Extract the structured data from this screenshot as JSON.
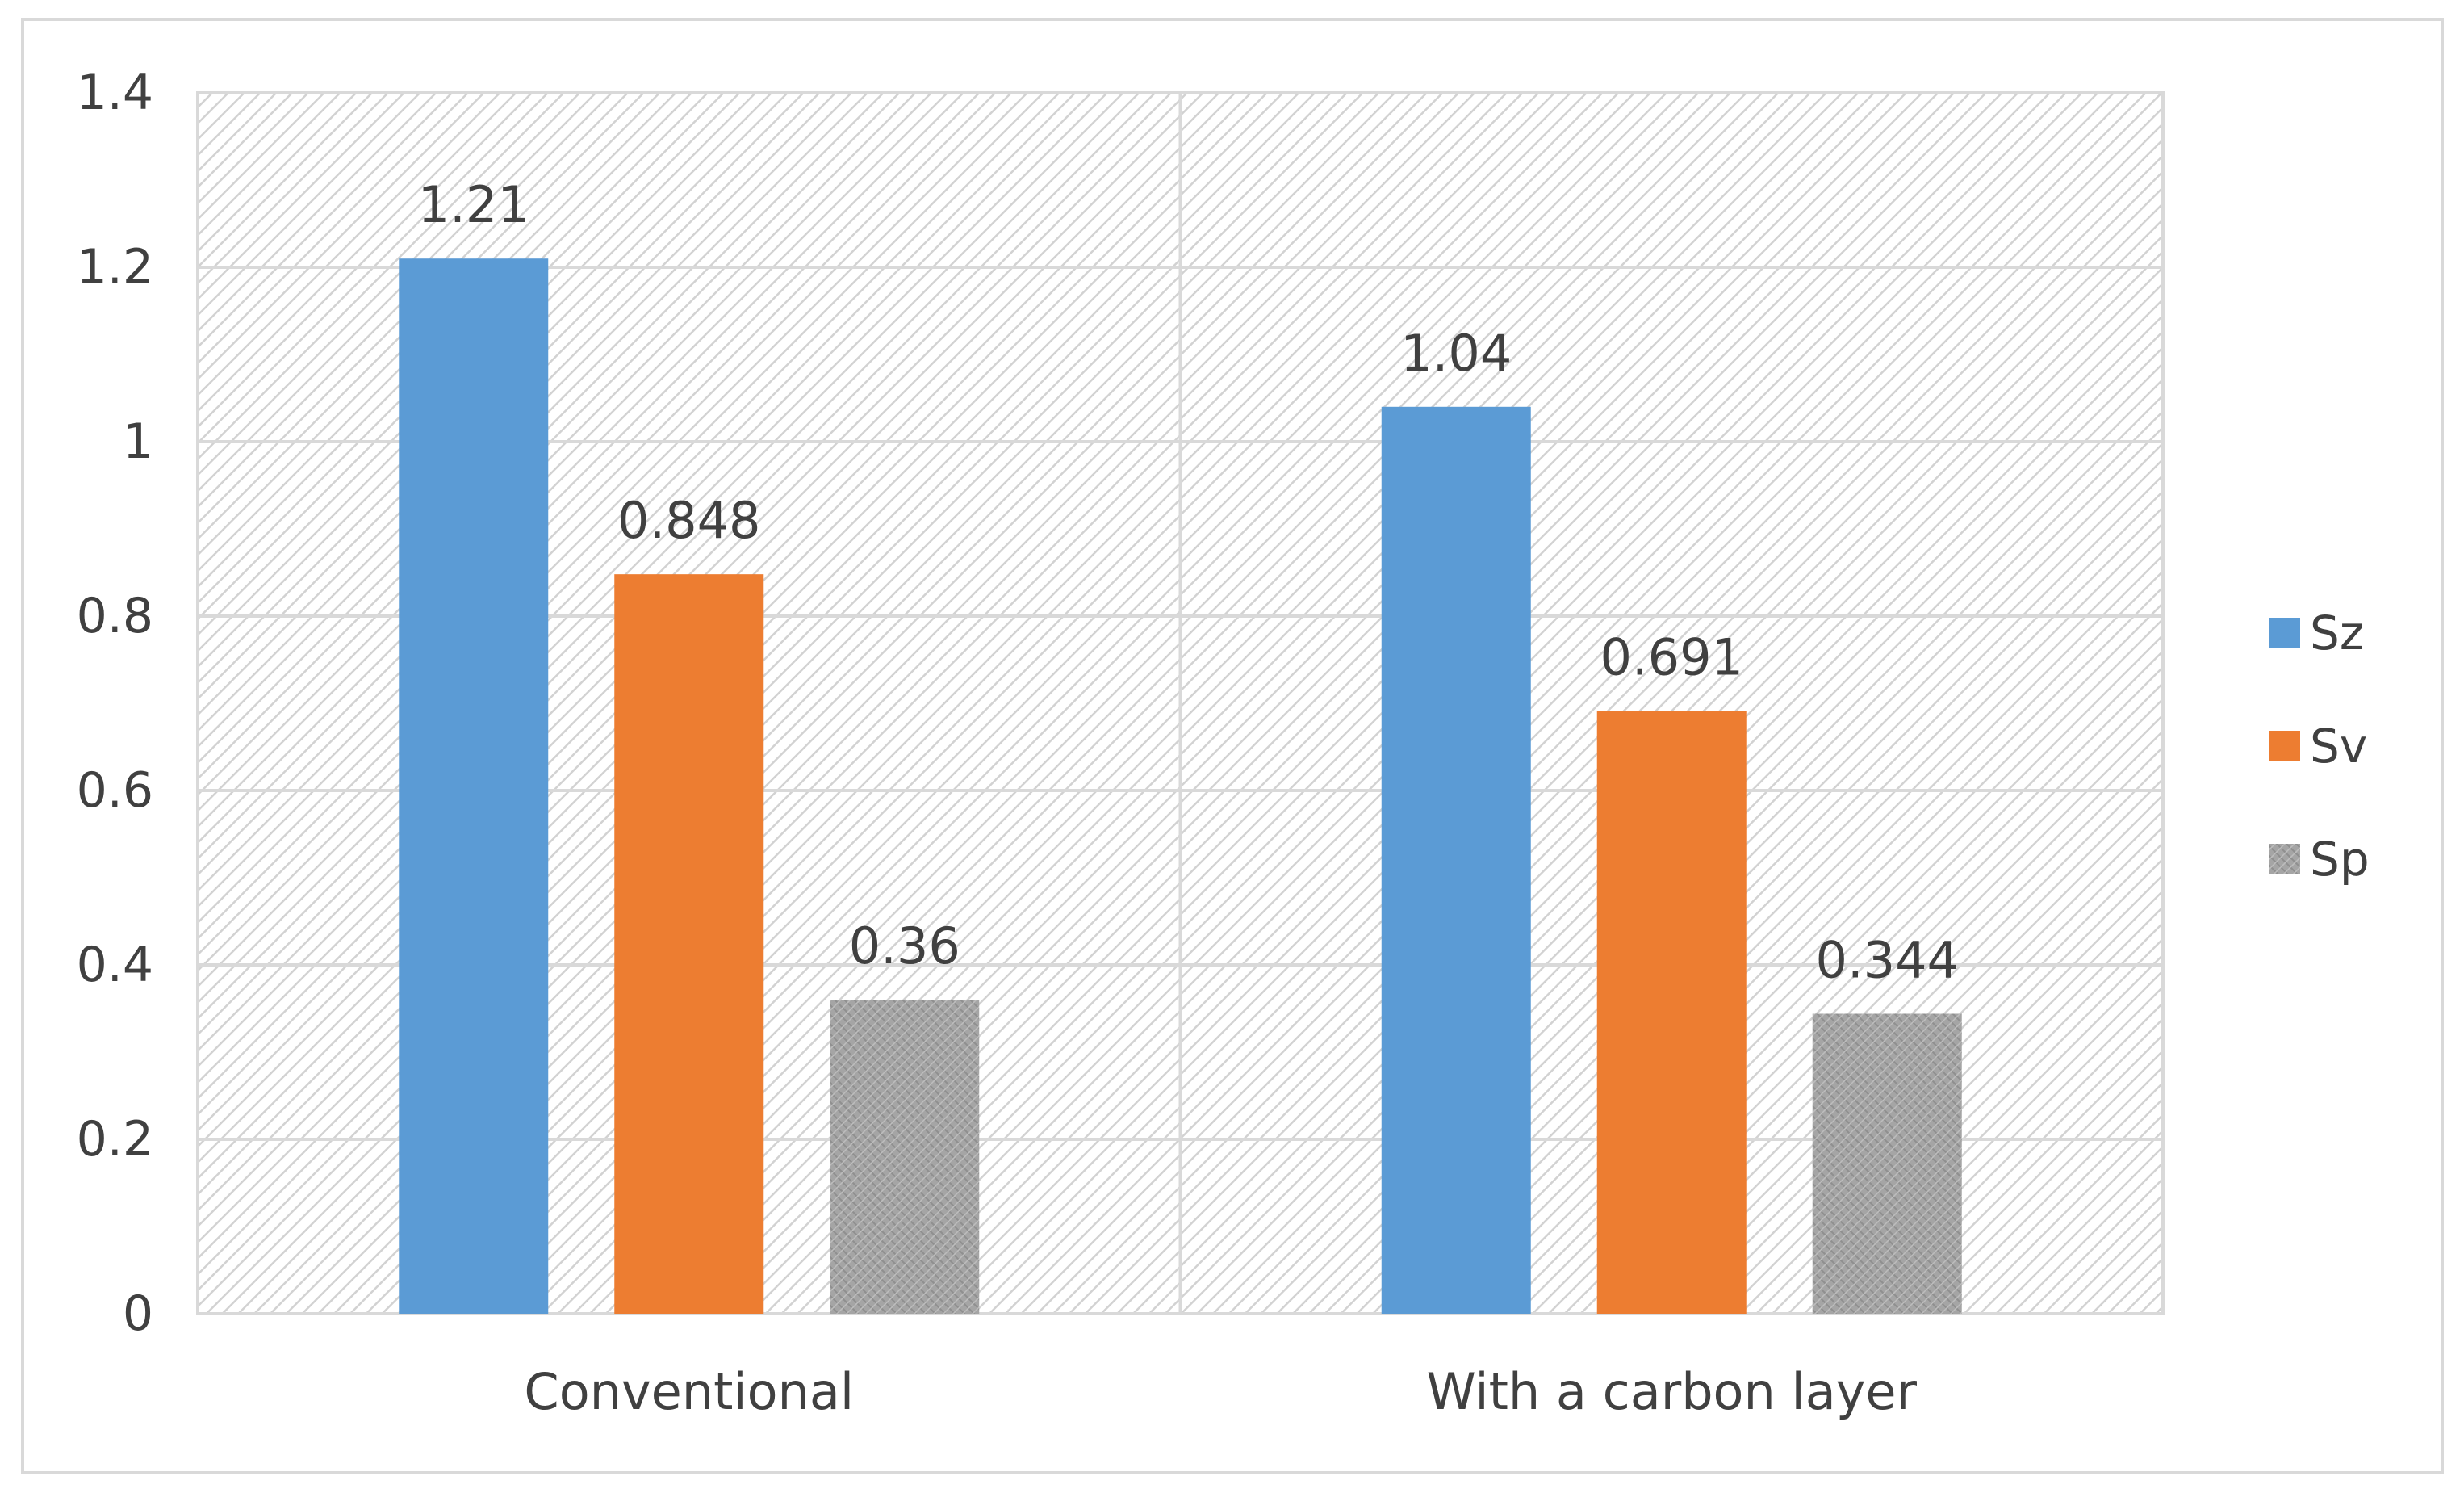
{
  "chart_data": {
    "type": "bar",
    "categories": [
      "Conventional",
      "With a carbon layer"
    ],
    "series": [
      {
        "name": "Sz",
        "values": [
          1.21,
          1.04
        ],
        "labels": [
          "1.21",
          "1.04"
        ],
        "color": "#5B9BD5"
      },
      {
        "name": "Sv",
        "values": [
          0.848,
          0.691
        ],
        "labels": [
          "0.848",
          "0.691"
        ],
        "color": "#ED7D31"
      },
      {
        "name": "Sp",
        "values": [
          0.36,
          0.344
        ],
        "labels": [
          "0.36",
          "0.344"
        ],
        "color": "#A5A5A5"
      }
    ],
    "y_ticks": [
      "0",
      "0.2",
      "0.4",
      "0.6",
      "0.8",
      "1",
      "1.2",
      "1.4"
    ],
    "ylim": [
      0,
      1.4
    ],
    "title": "",
    "xlabel": "",
    "ylabel": "",
    "grid": true,
    "legend_position": "right",
    "plot_background": "diagonal-hatch",
    "frame_color": "#D9D9D9",
    "grid_color": "#D9D9D9"
  }
}
